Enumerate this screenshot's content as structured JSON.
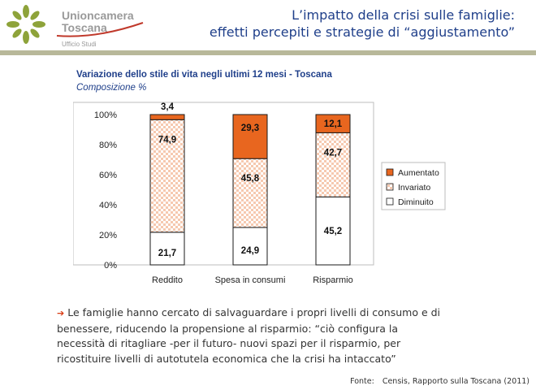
{
  "header": {
    "brand_line1": "Unioncamera",
    "brand_line2": "Toscana",
    "office": "Ufficio Studi",
    "title_line1": "L’impatto della crisi sulle famiglie:",
    "title_line2": "effetti percepiti e strategie di “aggiustamento”"
  },
  "chart_data": {
    "type": "bar",
    "stacked": true,
    "title": "Variazione dello stile di vita negli ultimi 12 mesi - Toscana",
    "subtitle": "Composizione %",
    "categories": [
      "Reddito",
      "Spesa in consumi",
      "Risparmio"
    ],
    "series": [
      {
        "name": "Diminuito",
        "values": [
          21.7,
          24.9,
          45.2
        ]
      },
      {
        "name": "Invariato",
        "values": [
          74.9,
          45.8,
          42.7
        ]
      },
      {
        "name": "Aumentato",
        "values": [
          3.4,
          29.3,
          12.1
        ]
      }
    ],
    "legend_order": [
      "Aumentato",
      "Invariato",
      "Diminuito"
    ],
    "legend_position": "right",
    "ylim": [
      0,
      100
    ],
    "yticks": [
      "0%",
      "20%",
      "40%",
      "60%",
      "80%",
      "100%"
    ],
    "grid": false,
    "labels": [
      [
        "21,7",
        "74,9",
        "3,4"
      ],
      [
        "24,9",
        "45,8",
        "29,3"
      ],
      [
        "45,2",
        "42,7",
        "12,1"
      ]
    ],
    "colors": {
      "Aumentato": "#e8661f",
      "Invariato": "#fde9dc",
      "Diminuito": "#ffffff",
      "border": "#1a1a1a",
      "frame": "#bdbdbd"
    }
  },
  "caption": "Le famiglie hanno cercato di salvaguardare i propri livelli di consumo e di benessere, riducendo la propensione al risparmio: “ciò configura la necessità di ritagliare -per il futuro- nuovi spazi per il risparmio, per ricostituire livelli di autotutela economica che la crisi ha intaccato”",
  "source": {
    "label": "Fonte:",
    "text": "Censis, Rapporto sulla Toscana (2011)"
  }
}
